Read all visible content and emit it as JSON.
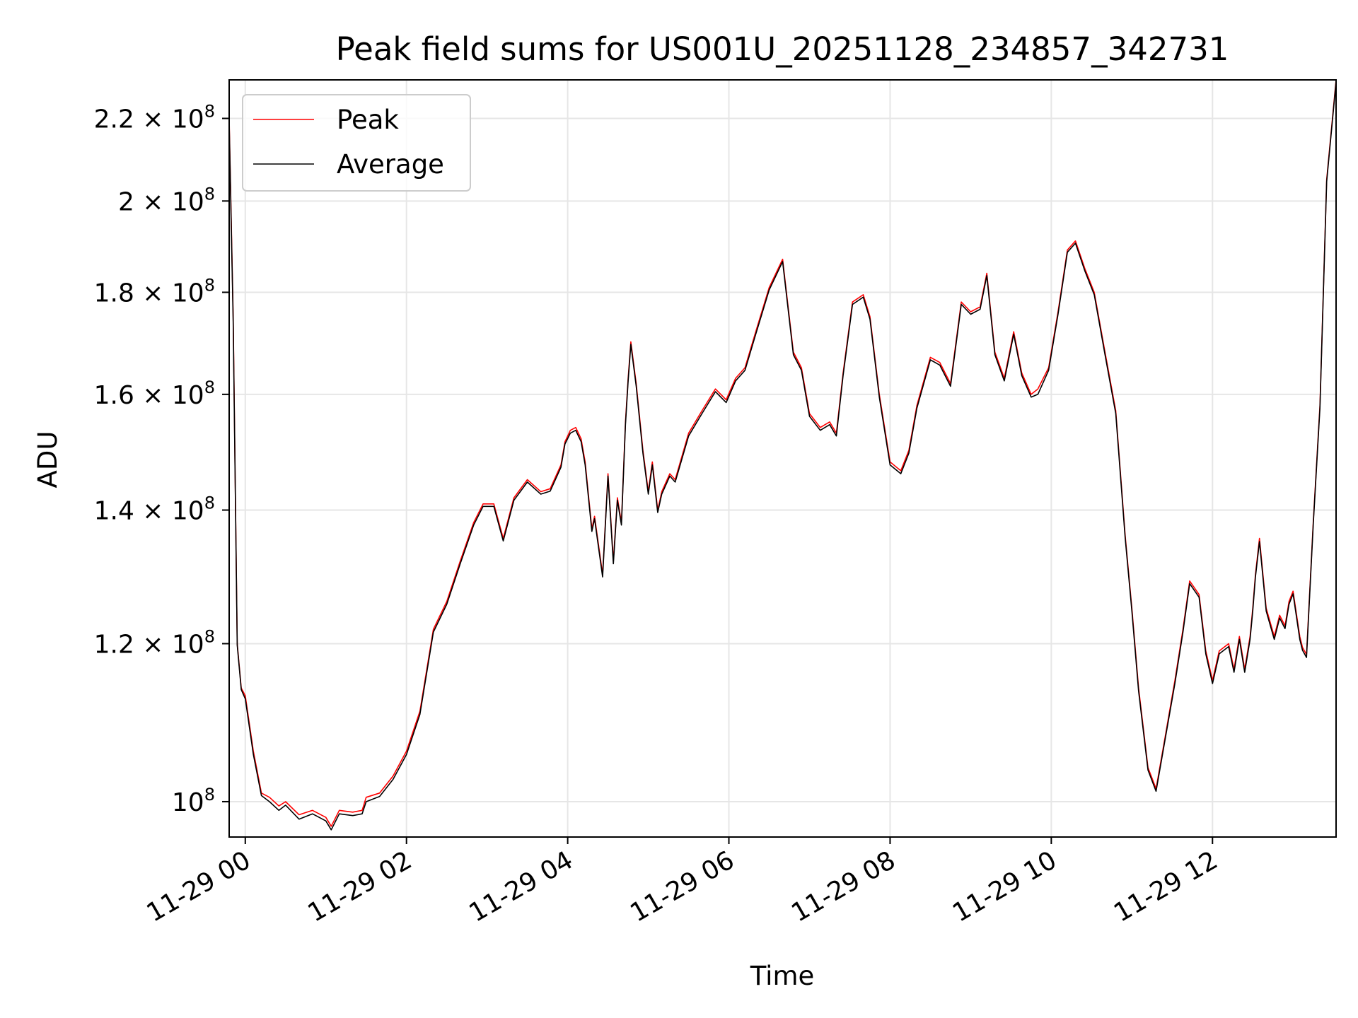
{
  "chart_data": {
    "type": "line",
    "title": "Peak field sums for US001U_20251128_234857_342731",
    "xlabel": "Time",
    "ylabel": "ADU",
    "yscale": "log",
    "xlim": [
      "2025-11-28 23:48",
      "2025-11-29 13:32"
    ],
    "ylim": [
      96000000,
      230000000
    ],
    "x_ticks": [
      {
        "value": "2025-11-29 00:00",
        "label": "11-29 00"
      },
      {
        "value": "2025-11-29 02:00",
        "label": "11-29 02"
      },
      {
        "value": "2025-11-29 04:00",
        "label": "11-29 04"
      },
      {
        "value": "2025-11-29 06:00",
        "label": "11-29 06"
      },
      {
        "value": "2025-11-29 08:00",
        "label": "11-29 08"
      },
      {
        "value": "2025-11-29 10:00",
        "label": "11-29 10"
      },
      {
        "value": "2025-11-29 12:00",
        "label": "11-29 12"
      }
    ],
    "y_ticks": [
      {
        "value": 100000000,
        "base": "10",
        "exp": "8"
      },
      {
        "value": 120000000,
        "base": "1.2 × 10",
        "exp": "8"
      },
      {
        "value": 140000000,
        "base": "1.4 × 10",
        "exp": "8"
      },
      {
        "value": 160000000,
        "base": "1.6 × 10",
        "exp": "8"
      },
      {
        "value": 180000000,
        "base": "1.8 × 10",
        "exp": "8"
      },
      {
        "value": 200000000,
        "base": "2 × 10",
        "exp": "8"
      },
      {
        "value": 220000000,
        "base": "2.2 × 10",
        "exp": "8"
      }
    ],
    "grid": true,
    "legend": "top-left",
    "x": [
      "2025-11-28 23:48",
      "2025-11-28 23:51",
      "2025-11-28 23:54",
      "2025-11-28 23:57",
      "2025-11-29 00:00",
      "2025-11-29 00:06",
      "2025-11-29 00:12",
      "2025-11-29 00:18",
      "2025-11-29 00:25",
      "2025-11-29 00:30",
      "2025-11-29 00:40",
      "2025-11-29 00:50",
      "2025-11-29 01:00",
      "2025-11-29 01:04",
      "2025-11-29 01:10",
      "2025-11-29 01:20",
      "2025-11-29 01:27",
      "2025-11-29 01:30",
      "2025-11-29 01:40",
      "2025-11-29 01:50",
      "2025-11-29 02:00",
      "2025-11-29 02:10",
      "2025-11-29 02:20",
      "2025-11-29 02:30",
      "2025-11-29 02:40",
      "2025-11-29 02:50",
      "2025-11-29 02:57",
      "2025-11-29 03:05",
      "2025-11-29 03:12",
      "2025-11-29 03:20",
      "2025-11-29 03:30",
      "2025-11-29 03:40",
      "2025-11-29 03:47",
      "2025-11-29 03:55",
      "2025-11-29 03:58",
      "2025-11-29 04:02",
      "2025-11-29 04:06",
      "2025-11-29 04:10",
      "2025-11-29 04:13",
      "2025-11-29 04:18",
      "2025-11-29 04:20",
      "2025-11-29 04:26",
      "2025-11-29 04:30",
      "2025-11-29 04:34",
      "2025-11-29 04:37",
      "2025-11-29 04:40",
      "2025-11-29 04:43",
      "2025-11-29 04:45",
      "2025-11-29 04:47",
      "2025-11-29 04:51",
      "2025-11-29 04:56",
      "2025-11-29 05:00",
      "2025-11-29 05:03",
      "2025-11-29 05:07",
      "2025-11-29 05:10",
      "2025-11-29 05:16",
      "2025-11-29 05:20",
      "2025-11-29 05:30",
      "2025-11-29 05:40",
      "2025-11-29 05:50",
      "2025-11-29 05:58",
      "2025-11-29 06:05",
      "2025-11-29 06:12",
      "2025-11-29 06:20",
      "2025-11-29 06:30",
      "2025-11-29 06:40",
      "2025-11-29 06:48",
      "2025-11-29 06:54",
      "2025-11-29 07:00",
      "2025-11-29 07:08",
      "2025-11-29 07:15",
      "2025-11-29 07:20",
      "2025-11-29 07:25",
      "2025-11-29 07:32",
      "2025-11-29 07:40",
      "2025-11-29 07:45",
      "2025-11-29 07:52",
      "2025-11-29 08:00",
      "2025-11-29 08:08",
      "2025-11-29 08:14",
      "2025-11-29 08:20",
      "2025-11-29 08:30",
      "2025-11-29 08:37",
      "2025-11-29 08:45",
      "2025-11-29 08:53",
      "2025-11-29 09:00",
      "2025-11-29 09:07",
      "2025-11-29 09:12",
      "2025-11-29 09:18",
      "2025-11-29 09:25",
      "2025-11-29 09:32",
      "2025-11-29 09:38",
      "2025-11-29 09:45",
      "2025-11-29 09:50",
      "2025-11-29 09:58",
      "2025-11-29 10:05",
      "2025-11-29 10:12",
      "2025-11-29 10:18",
      "2025-11-29 10:25",
      "2025-11-29 10:32",
      "2025-11-29 10:40",
      "2025-11-29 10:48",
      "2025-11-29 10:55",
      "2025-11-29 11:00",
      "2025-11-29 11:05",
      "2025-11-29 11:12",
      "2025-11-29 11:18",
      "2025-11-29 11:25",
      "2025-11-29 11:32",
      "2025-11-29 11:38",
      "2025-11-29 11:43",
      "2025-11-29 11:50",
      "2025-11-29 11:55",
      "2025-11-29 12:00",
      "2025-11-29 12:05",
      "2025-11-29 12:12",
      "2025-11-29 12:16",
      "2025-11-29 12:20",
      "2025-11-29 12:24",
      "2025-11-29 12:28",
      "2025-11-29 12:30",
      "2025-11-29 12:32",
      "2025-11-29 12:35",
      "2025-11-29 12:40",
      "2025-11-29 12:46",
      "2025-11-29 12:50",
      "2025-11-29 12:54",
      "2025-11-29 12:57",
      "2025-11-29 13:00",
      "2025-11-29 13:05",
      "2025-11-29 13:07",
      "2025-11-29 13:10",
      "2025-11-29 13:15",
      "2025-11-29 13:20",
      "2025-11-29 13:25",
      "2025-11-29 13:32"
    ],
    "series": [
      {
        "name": "Peak",
        "color": "#ff0000",
        "values": [
          220000000,
          175000000,
          120000000,
          114000000,
          113000000,
          106000000,
          101000000,
          100500000,
          99500000,
          100000000,
          98500000,
          99000000,
          98200000,
          97200000,
          99000000,
          98800000,
          99000000,
          100500000,
          101000000,
          103000000,
          106000000,
          111000000,
          122000000,
          126000000,
          132000000,
          138000000,
          141000000,
          141000000,
          135500000,
          142000000,
          145000000,
          143000000,
          143500000,
          147500000,
          151500000,
          153500000,
          154000000,
          152000000,
          148000000,
          137000000,
          139000000,
          130000000,
          146000000,
          132000000,
          142000000,
          138000000,
          155000000,
          163000000,
          170000000,
          162000000,
          150000000,
          143000000,
          148000000,
          140000000,
          143000000,
          146000000,
          145000000,
          153000000,
          157000000,
          161000000,
          159000000,
          163000000,
          165000000,
          172000000,
          181000000,
          187000000,
          168000000,
          165000000,
          156500000,
          154000000,
          155000000,
          153000000,
          164000000,
          178000000,
          179500000,
          175000000,
          160000000,
          148000000,
          146500000,
          150000000,
          158000000,
          167000000,
          166000000,
          162000000,
          178000000,
          176000000,
          177000000,
          184000000,
          168000000,
          163000000,
          172000000,
          164000000,
          160000000,
          161000000,
          165000000,
          176000000,
          189000000,
          191000000,
          185000000,
          180000000,
          168000000,
          157000000,
          136000000,
          125000000,
          114000000,
          104000000,
          101500000,
          108000000,
          115000000,
          122000000,
          129000000,
          127000000,
          119000000,
          115000000,
          119000000,
          120000000,
          116500000,
          121000000,
          116500000,
          121000000,
          125000000,
          130000000,
          135500000,
          125000000,
          121000000,
          124000000,
          122500000,
          126000000,
          127500000,
          121000000,
          119500000,
          118500000,
          138000000,
          158000000,
          205000000,
          230000000
        ]
      },
      {
        "name": "Average",
        "color": "#000000",
        "values": [
          219000000,
          174000000,
          119800000,
          113800000,
          112600000,
          105600000,
          100700000,
          100000000,
          99000000,
          99600000,
          98000000,
          98600000,
          97800000,
          96800000,
          98600000,
          98400000,
          98600000,
          100000000,
          100600000,
          102600000,
          105600000,
          110600000,
          121600000,
          125600000,
          131600000,
          137600000,
          140600000,
          140600000,
          135100000,
          141600000,
          144600000,
          142600000,
          143100000,
          147100000,
          151100000,
          153000000,
          153500000,
          151500000,
          147500000,
          136600000,
          138600000,
          129600000,
          145600000,
          131600000,
          141600000,
          137600000,
          154500000,
          162500000,
          169500000,
          161500000,
          149500000,
          142600000,
          147500000,
          139600000,
          142600000,
          145600000,
          144600000,
          152500000,
          156500000,
          160500000,
          158500000,
          162500000,
          164500000,
          171500000,
          180500000,
          186500000,
          167500000,
          164500000,
          156000000,
          153500000,
          154500000,
          152500000,
          163500000,
          177500000,
          179000000,
          174500000,
          159500000,
          147500000,
          146000000,
          149500000,
          157500000,
          166500000,
          165500000,
          161500000,
          177500000,
          175500000,
          176500000,
          183500000,
          167500000,
          162500000,
          171500000,
          163500000,
          159500000,
          160000000,
          164500000,
          175500000,
          188500000,
          190500000,
          184500000,
          179500000,
          167500000,
          156500000,
          135600000,
          124600000,
          113600000,
          103700000,
          101200000,
          107700000,
          114600000,
          121600000,
          128600000,
          126600000,
          118600000,
          114600000,
          118600000,
          119600000,
          116100000,
          120600000,
          116100000,
          120600000,
          124600000,
          129600000,
          135000000,
          124600000,
          120600000,
          123600000,
          122100000,
          125600000,
          127100000,
          120600000,
          119100000,
          118100000,
          137600000,
          157500000,
          204500000,
          229500000
        ]
      }
    ]
  }
}
